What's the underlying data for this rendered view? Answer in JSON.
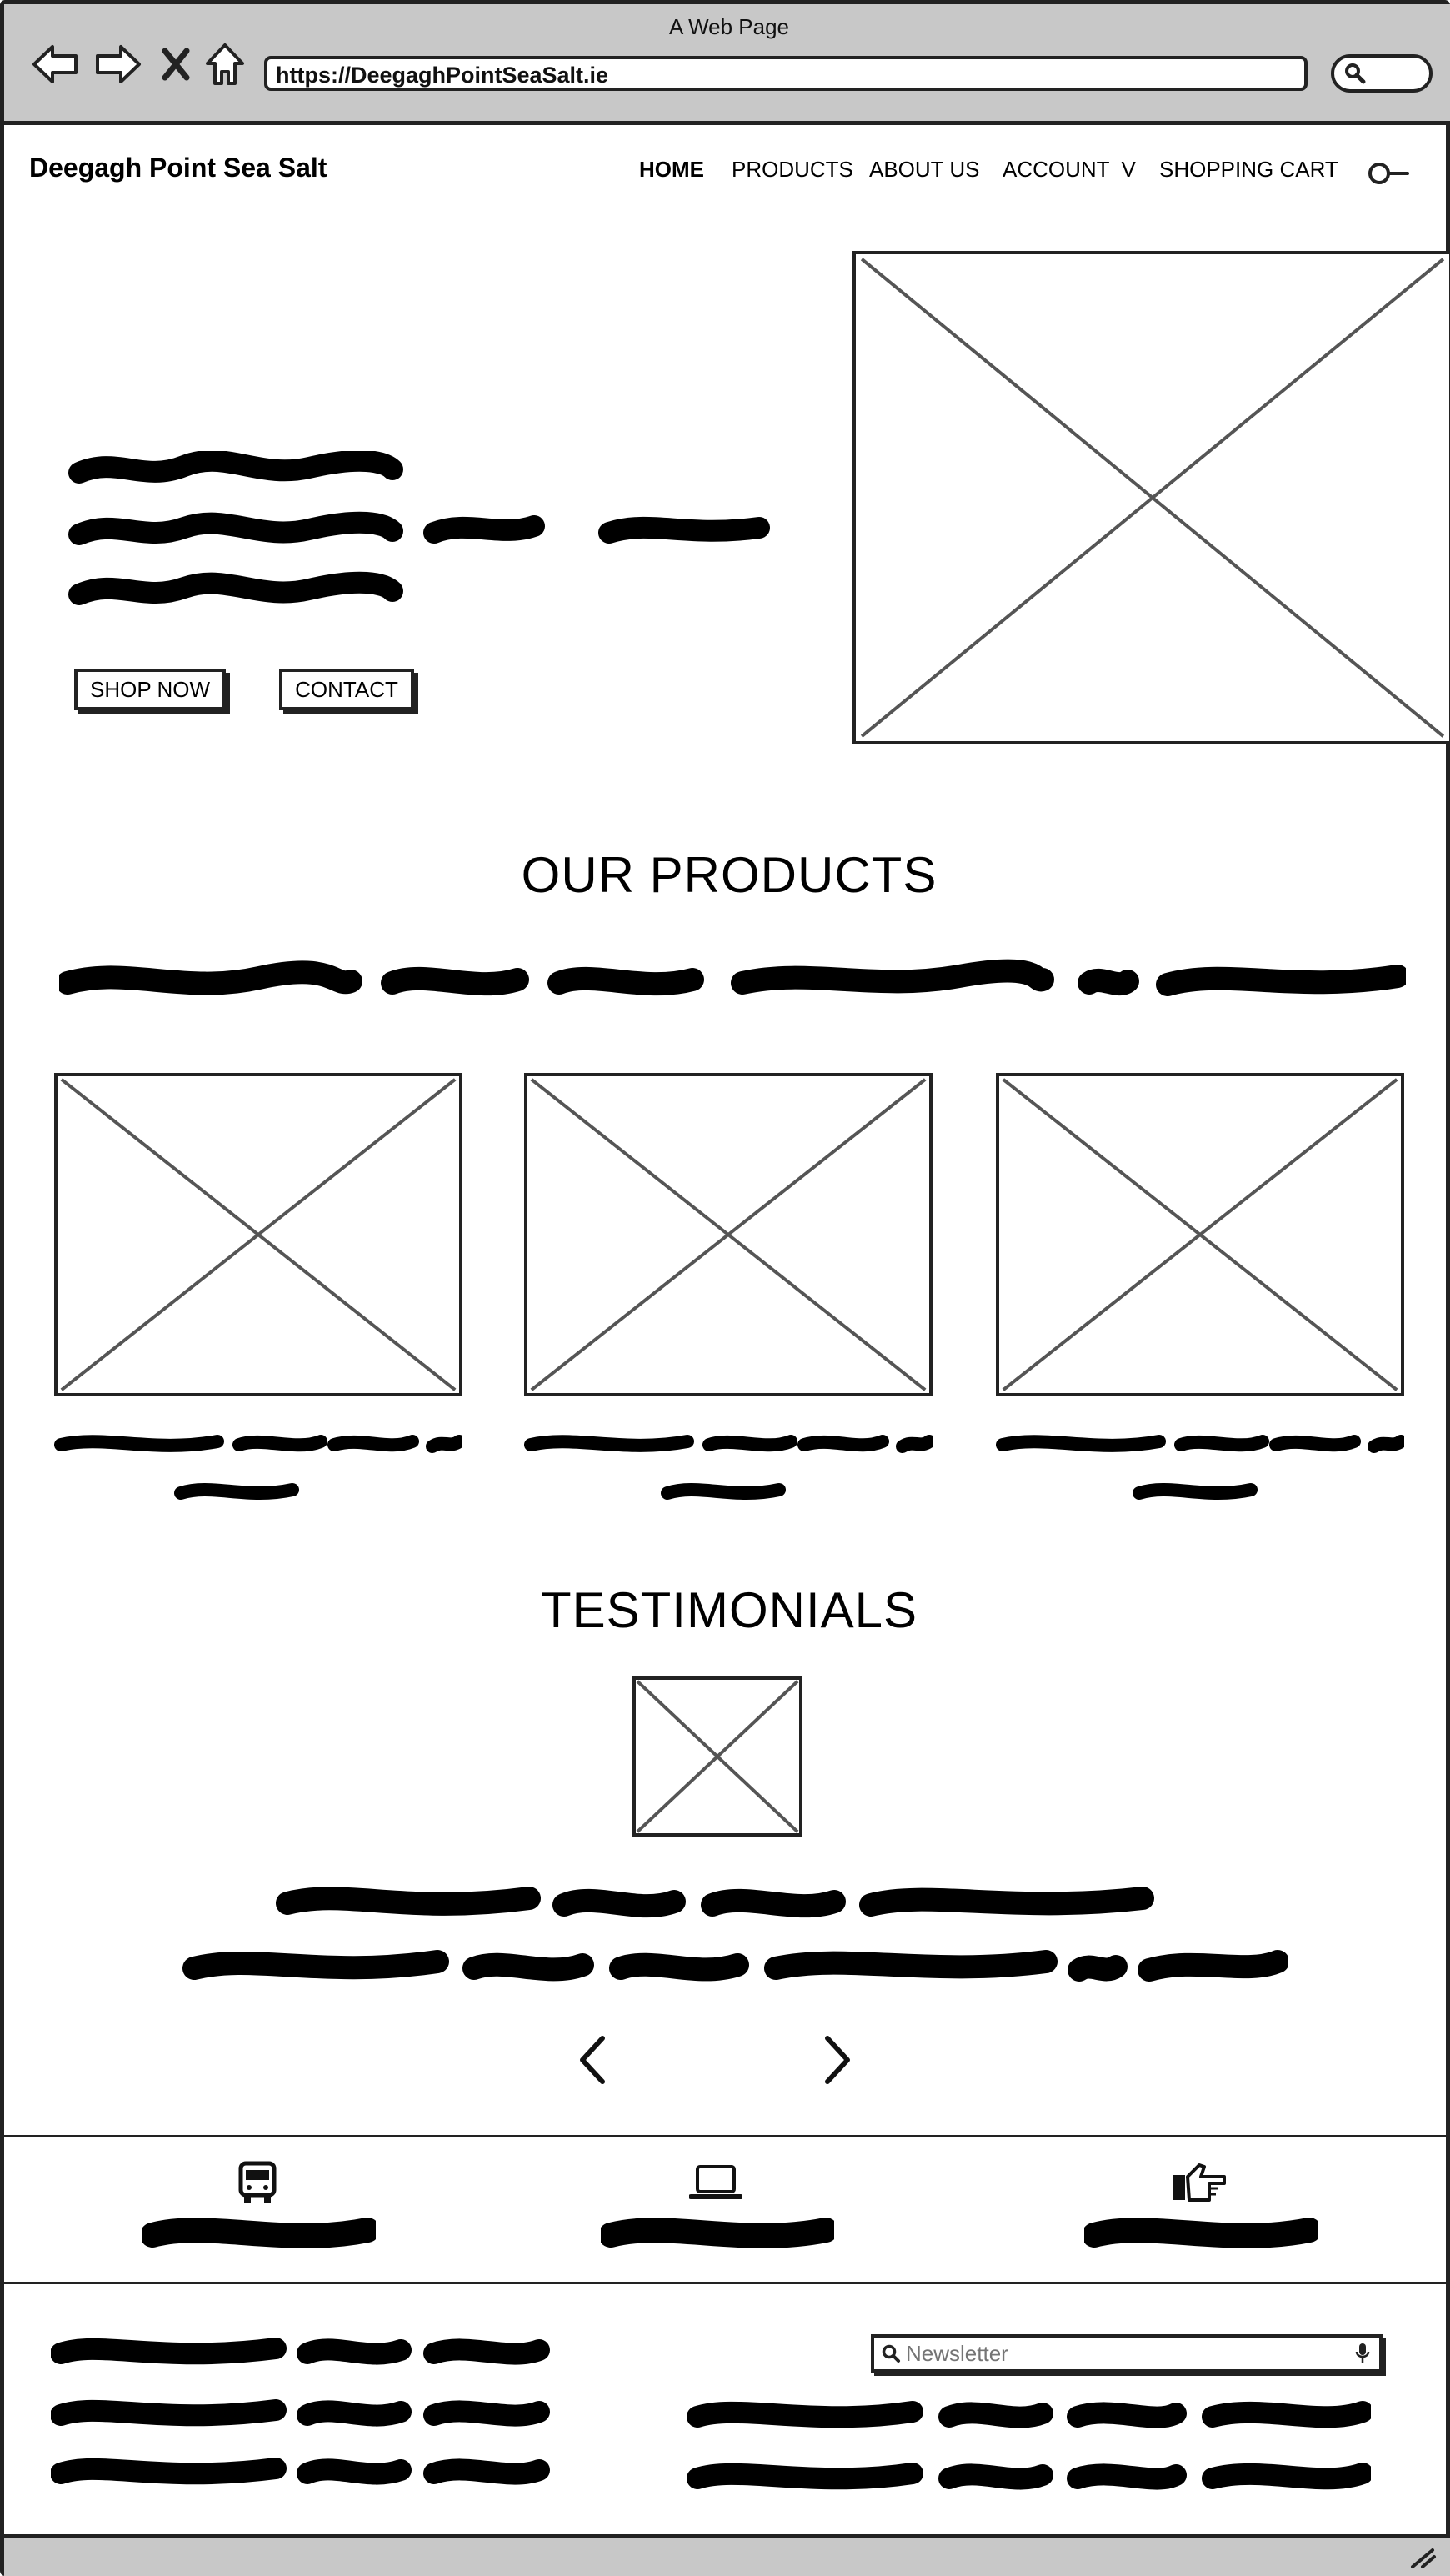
{
  "window": {
    "title": "A Web Page"
  },
  "browser": {
    "url": "https://DeegaghPointSeaSalt.ie",
    "back_icon": "arrow-left-icon",
    "forward_icon": "arrow-right-icon",
    "stop_icon": "close-icon",
    "home_icon": "home-icon",
    "search_icon": "search-icon"
  },
  "site": {
    "brand": "Deegagh Point Sea Salt",
    "nav": [
      {
        "label": "HOME",
        "active": true
      },
      {
        "label": "PRODUCTS",
        "active": false
      },
      {
        "label": "ABOUT US",
        "active": false
      },
      {
        "label": "ACCOUNT  V",
        "active": false
      },
      {
        "label": "SHOPPING CART",
        "active": false
      }
    ],
    "search_icon": "search-icon"
  },
  "hero": {
    "buttons": {
      "shop": "SHOP NOW",
      "contact": "CONTACT"
    }
  },
  "products": {
    "title": "OUR PRODUCTS",
    "cards": [
      {
        "image": "product-image-1"
      },
      {
        "image": "product-image-2"
      },
      {
        "image": "product-image-3"
      }
    ]
  },
  "testimonials": {
    "title": "TESTIMONIALS",
    "prev_icon": "chevron-left-icon",
    "next_icon": "chevron-right-icon"
  },
  "features": [
    {
      "icon": "bus-icon"
    },
    {
      "icon": "laptop-icon"
    },
    {
      "icon": "pointing-hand-icon"
    }
  ],
  "footer": {
    "newsletter_placeholder": "Newsletter",
    "newsletter_icon": "search-icon",
    "mic_icon": "microphone-icon"
  },
  "status_bar": {
    "icon": "resize-handle-icon"
  },
  "colors": {
    "chrome": "#c8c8c8",
    "ink": "#222222",
    "placeholder_lines": "#555555"
  }
}
